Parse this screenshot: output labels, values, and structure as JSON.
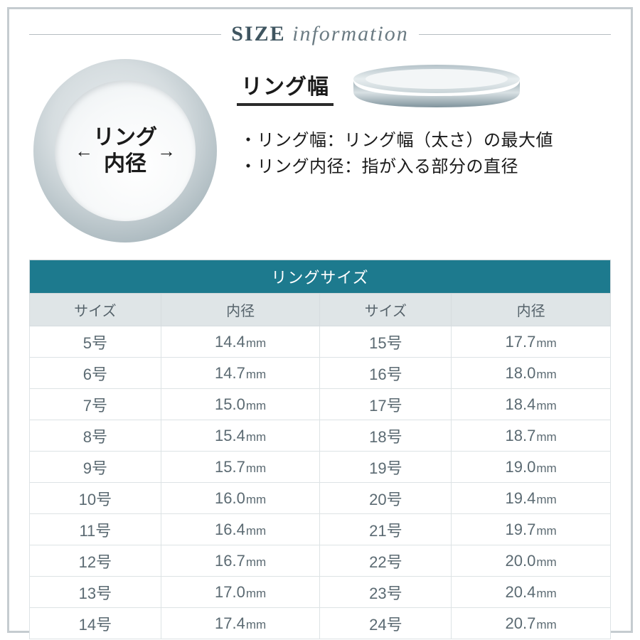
{
  "title": {
    "bold": "SIZE",
    "light": "information"
  },
  "diagram": {
    "inner_diameter_label_line1": "リング",
    "inner_diameter_label_line2": "内径",
    "width_label": "リング幅",
    "ring_color_outer_dark": "#8fa2aa",
    "ring_color_outer_light": "#d6dde0",
    "ring_color_inner": "#f4f7f8"
  },
  "descriptions": [
    "・リング幅：リング幅（太さ）の最大値",
    "・リング内径：指が入る部分の直径"
  ],
  "table": {
    "title": "リングサイズ",
    "title_bg": "#1d7a8e",
    "head_bg": "#dfe5e7",
    "border_color": "#dde3e5",
    "text_color": "#5b6a72",
    "headers": [
      "サイズ",
      "内径",
      "サイズ",
      "内径"
    ],
    "unit": "mm",
    "size_suffix": "号",
    "rows": [
      {
        "s1": "5",
        "d1": "14.4",
        "s2": "15",
        "d2": "17.7"
      },
      {
        "s1": "6",
        "d1": "14.7",
        "s2": "16",
        "d2": "18.0"
      },
      {
        "s1": "7",
        "d1": "15.0",
        "s2": "17",
        "d2": "18.4"
      },
      {
        "s1": "8",
        "d1": "15.4",
        "s2": "18",
        "d2": "18.7"
      },
      {
        "s1": "9",
        "d1": "15.7",
        "s2": "19",
        "d2": "19.0"
      },
      {
        "s1": "10",
        "d1": "16.0",
        "s2": "20",
        "d2": "19.4"
      },
      {
        "s1": "11",
        "d1": "16.4",
        "s2": "21",
        "d2": "19.7"
      },
      {
        "s1": "12",
        "d1": "16.7",
        "s2": "22",
        "d2": "20.0"
      },
      {
        "s1": "13",
        "d1": "17.0",
        "s2": "23",
        "d2": "20.4"
      },
      {
        "s1": "14",
        "d1": "17.4",
        "s2": "24",
        "d2": "20.7"
      }
    ]
  }
}
